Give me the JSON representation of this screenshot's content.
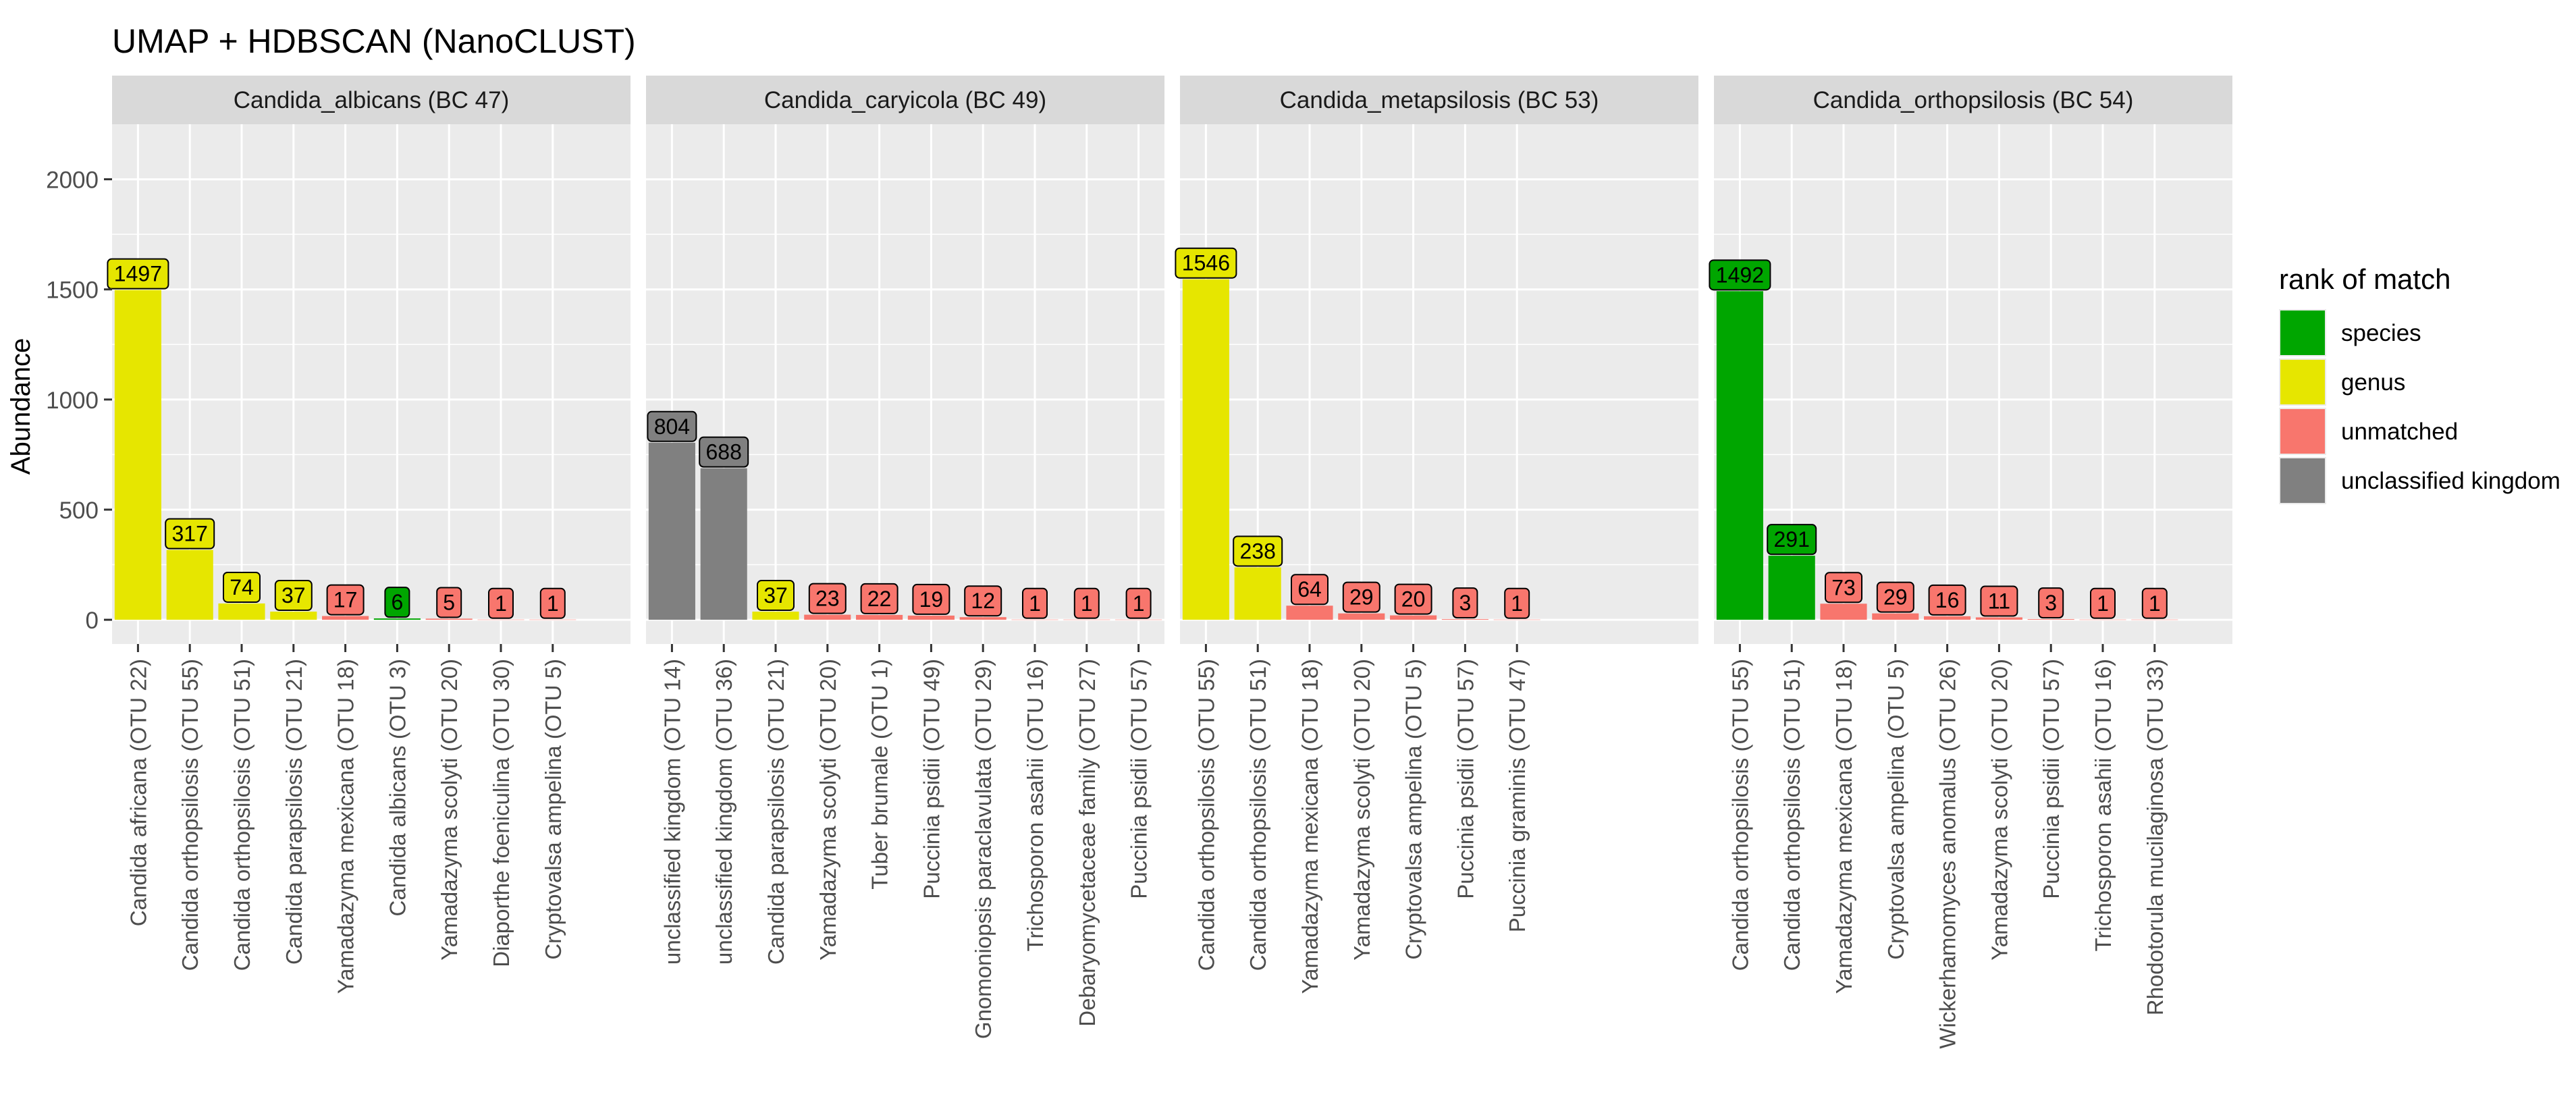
{
  "title": "UMAP + HDBSCAN (NanoCLUST)",
  "colors": {
    "species": "#00A600",
    "genus": "#E6E600",
    "unmatched": "#F8766D",
    "unclassified kingdom": "#808080",
    "panel_bg": "#EBEBEB",
    "strip_bg": "#D9D9D9",
    "grid": "#FFFFFF"
  },
  "chart_data": {
    "type": "bar",
    "title": "UMAP + HDBSCAN (NanoCLUST)",
    "ylabel": "Abundance",
    "xlabel": "",
    "ylim": [
      -110,
      2250
    ],
    "yticks": [
      0,
      500,
      1000,
      1500,
      2000
    ],
    "legend": {
      "title": "rank of match",
      "position": "right",
      "entries": [
        "species",
        "genus",
        "unmatched",
        "unclassified kingdom"
      ]
    },
    "facets": [
      {
        "strip": "Candida_albicans (BC 47)",
        "bars": [
          {
            "label": "Candida africana (OTU 22)",
            "value": 1497,
            "rank": "genus"
          },
          {
            "label": "Candida orthopsilosis (OTU 55)",
            "value": 317,
            "rank": "genus"
          },
          {
            "label": "Candida orthopsilosis (OTU 51)",
            "value": 74,
            "rank": "genus"
          },
          {
            "label": "Candida parapsilosis (OTU 21)",
            "value": 37,
            "rank": "genus"
          },
          {
            "label": "Yamadazyma mexicana (OTU 18)",
            "value": 17,
            "rank": "unmatched"
          },
          {
            "label": "Candida albicans (OTU 3)",
            "value": 6,
            "rank": "species"
          },
          {
            "label": "Yamadazyma scolyti (OTU 20)",
            "value": 5,
            "rank": "unmatched"
          },
          {
            "label": "Diaporthe foeniculina (OTU 30)",
            "value": 1,
            "rank": "unmatched"
          },
          {
            "label": "Cryptovalsa ampelina (OTU 5)",
            "value": 1,
            "rank": "unmatched"
          }
        ]
      },
      {
        "strip": "Candida_caryicola (BC 49)",
        "bars": [
          {
            "label": "unclassified kingdom (OTU 14)",
            "value": 804,
            "rank": "unclassified kingdom"
          },
          {
            "label": "unclassified kingdom (OTU 36)",
            "value": 688,
            "rank": "unclassified kingdom"
          },
          {
            "label": "Candida parapsilosis (OTU 21)",
            "value": 37,
            "rank": "genus"
          },
          {
            "label": "Yamadazyma scolyti (OTU 20)",
            "value": 23,
            "rank": "unmatched"
          },
          {
            "label": "Tuber brumale (OTU 1)",
            "value": 22,
            "rank": "unmatched"
          },
          {
            "label": "Puccinia psidii (OTU 49)",
            "value": 19,
            "rank": "unmatched"
          },
          {
            "label": "Gnomoniopsis paraclavulata (OTU 29)",
            "value": 12,
            "rank": "unmatched"
          },
          {
            "label": "Trichosporon asahii (OTU 16)",
            "value": 1,
            "rank": "unmatched"
          },
          {
            "label": "Debaryomycetaceae family (OTU 27)",
            "value": 1,
            "rank": "unmatched"
          },
          {
            "label": "Puccinia psidii (OTU 57)",
            "value": 1,
            "rank": "unmatched"
          }
        ]
      },
      {
        "strip": "Candida_metapsilosis (BC 53)",
        "bars": [
          {
            "label": "Candida orthopsilosis (OTU 55)",
            "value": 1546,
            "rank": "genus"
          },
          {
            "label": "Candida orthopsilosis (OTU 51)",
            "value": 238,
            "rank": "genus"
          },
          {
            "label": "Yamadazyma mexicana (OTU 18)",
            "value": 64,
            "rank": "unmatched"
          },
          {
            "label": "Yamadazyma scolyti (OTU 20)",
            "value": 29,
            "rank": "unmatched"
          },
          {
            "label": "Cryptovalsa ampelina (OTU 5)",
            "value": 20,
            "rank": "unmatched"
          },
          {
            "label": "Puccinia psidii (OTU 57)",
            "value": 3,
            "rank": "unmatched"
          },
          {
            "label": "Puccinia graminis (OTU 47)",
            "value": 1,
            "rank": "unmatched"
          }
        ]
      },
      {
        "strip": "Candida_orthopsilosis (BC 54)",
        "bars": [
          {
            "label": "Candida orthopsilosis (OTU 55)",
            "value": 1492,
            "rank": "species"
          },
          {
            "label": "Candida orthopsilosis (OTU 51)",
            "value": 291,
            "rank": "species"
          },
          {
            "label": "Yamadazyma mexicana (OTU 18)",
            "value": 73,
            "rank": "unmatched"
          },
          {
            "label": "Cryptovalsa ampelina (OTU 5)",
            "value": 29,
            "rank": "unmatched"
          },
          {
            "label": "Wickerhamomyces anomalus (OTU 26)",
            "value": 16,
            "rank": "unmatched"
          },
          {
            "label": "Yamadazyma scolyti (OTU 20)",
            "value": 11,
            "rank": "unmatched"
          },
          {
            "label": "Puccinia psidii (OTU 57)",
            "value": 3,
            "rank": "unmatched"
          },
          {
            "label": "Trichosporon asahii (OTU 16)",
            "value": 1,
            "rank": "unmatched"
          },
          {
            "label": "Rhodotorula mucilaginosa (OTU 33)",
            "value": 1,
            "rank": "unmatched"
          }
        ]
      }
    ]
  }
}
